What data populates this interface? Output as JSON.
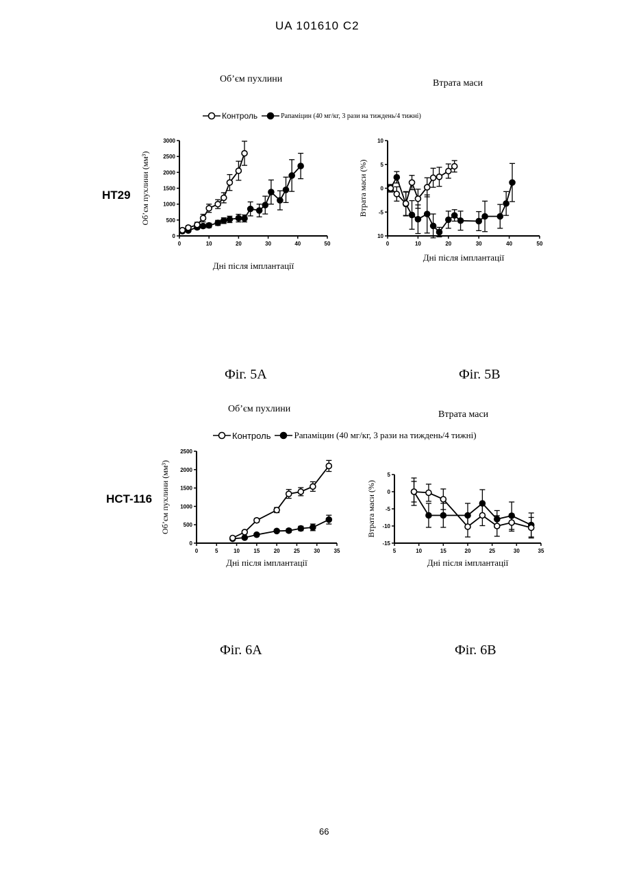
{
  "header": {
    "text": "UA   101610   C2"
  },
  "page_number": "66",
  "figures": {
    "fig5A_label": "Фіг. 5А",
    "fig5B_label": "Фіг. 5В",
    "fig6A_label": "Фіг. 6А",
    "fig6B_label": "Фіг. 6В",
    "cell_line_1": "HT29",
    "cell_line_2": "HCT-116"
  },
  "titles": {
    "volume_5": "Об’єм пухлини",
    "mass_5": "Втрата маси",
    "volume_6": "Об’єм пухлини",
    "mass_6": "Втрата маси"
  },
  "legend_top": {
    "control": "Контроль",
    "rapamycin": "Рапаміцин (40 мг/кг, 3 рази на тиждень/4 тижні)"
  },
  "legend_bottom": {
    "control": "Контроль",
    "rapamycin": "Рапаміцин (40 мг/кг, 3 рази на тиждень/4 тижні)"
  },
  "colors": {
    "ink": "#000000",
    "open_marker_fill": "#ffffff"
  },
  "chart_data": [
    {
      "id": "c5a",
      "type": "line",
      "xlabel": "Дні після імплантації",
      "ylabel": "Об’єм пухлини (мм³)",
      "xlim": [
        0,
        50
      ],
      "ylim": [
        0,
        3000
      ],
      "xticks": [
        0,
        10,
        20,
        30,
        40,
        50
      ],
      "yticks": [
        0,
        500,
        1000,
        1500,
        2000,
        2500,
        3000
      ],
      "series": [
        {
          "name": "Контроль",
          "marker": "open",
          "x": [
            1,
            3,
            6,
            8,
            10,
            13,
            15,
            17,
            20,
            22
          ],
          "y": [
            180,
            260,
            350,
            560,
            870,
            1000,
            1200,
            1680,
            2050,
            2600
          ],
          "err": [
            50,
            60,
            80,
            120,
            130,
            140,
            160,
            250,
            300,
            380
          ]
        },
        {
          "name": "Рапаміцин (40 мг/кг, 3 рази на тиждень/4 тижні)",
          "marker": "filled",
          "x": [
            1,
            3,
            6,
            8,
            10,
            13,
            15,
            17,
            20,
            22,
            24,
            27,
            29,
            31,
            34,
            36,
            38,
            41
          ],
          "y": [
            150,
            170,
            270,
            310,
            330,
            410,
            480,
            520,
            560,
            550,
            850,
            800,
            970,
            1380,
            1120,
            1450,
            1900,
            2200
          ],
          "err": [
            30,
            40,
            60,
            60,
            70,
            80,
            90,
            100,
            120,
            110,
            220,
            200,
            280,
            380,
            300,
            400,
            500,
            400
          ]
        }
      ]
    },
    {
      "id": "c5b",
      "type": "line",
      "xlabel": "Дні після імплантації",
      "ylabel": "Втрата маси (%)",
      "xlim": [
        0,
        50
      ],
      "ylim": [
        -10,
        10
      ],
      "xticks": [
        0,
        10,
        20,
        30,
        40,
        50
      ],
      "yticks": [
        -10,
        -5,
        0,
        5,
        10
      ],
      "ytick_labels": [
        "10",
        "-5",
        "0",
        "5",
        "10"
      ],
      "series": [
        {
          "name": "Контроль",
          "marker": "open",
          "x": [
            1,
            3,
            6,
            8,
            10,
            13,
            15,
            17,
            20,
            22
          ],
          "y": [
            0,
            -1.2,
            -3.2,
            1.2,
            -2.2,
            0.2,
            2.2,
            2.4,
            3.6,
            4.6
          ],
          "err": [
            0.6,
            1.5,
            2.5,
            1.5,
            2,
            2,
            2,
            2,
            1.5,
            1.2
          ]
        },
        {
          "name": "Рапаміцин (40 мг/кг, 3 рази на тиждень/4 тижні)",
          "marker": "filled",
          "x": [
            1,
            3,
            6,
            8,
            10,
            13,
            15,
            17,
            20,
            22,
            24,
            30,
            32,
            37,
            39,
            41
          ],
          "y": [
            0,
            2.3,
            -3.3,
            -5.6,
            -6.5,
            -5.4,
            -7.9,
            -9.2,
            -6.6,
            -5.7,
            -6.8,
            -6.9,
            -5.9,
            -5.9,
            -3.2,
            1.2
          ],
          "err": [
            0.8,
            1.2,
            2.5,
            3,
            3,
            4,
            2.5,
            1,
            1.8,
            1.2,
            2,
            2,
            3.2,
            2.5,
            2.5,
            4
          ]
        }
      ]
    },
    {
      "id": "c6a",
      "type": "line",
      "xlabel": "Дні після імплантації",
      "ylabel": "Об’єм пухлини (мм³)",
      "xlim": [
        0,
        35
      ],
      "ylim": [
        0,
        2500
      ],
      "xticks": [
        0,
        5,
        10,
        15,
        20,
        25,
        30,
        35
      ],
      "yticks": [
        0,
        500,
        1000,
        1500,
        2000,
        2500
      ],
      "series": [
        {
          "name": "Контроль",
          "marker": "open",
          "x": [
            9,
            12,
            15,
            20,
            23,
            26,
            29,
            33
          ],
          "y": [
            140,
            300,
            620,
            900,
            1340,
            1400,
            1540,
            2100
          ],
          "err": [
            20,
            40,
            50,
            70,
            120,
            110,
            130,
            150
          ]
        },
        {
          "name": "Рапаміцин (40 мг/кг, 3 рази на тиждень/4 тижні)",
          "marker": "filled",
          "x": [
            9,
            12,
            15,
            20,
            23,
            26,
            29,
            33
          ],
          "y": [
            120,
            150,
            230,
            330,
            340,
            400,
            430,
            640
          ],
          "err": [
            15,
            20,
            30,
            40,
            50,
            60,
            90,
            120
          ]
        }
      ]
    },
    {
      "id": "c6b",
      "type": "line",
      "xlabel": "Дні після імплантації",
      "ylabel": "Втрата маси (%)",
      "xlim": [
        5,
        35
      ],
      "ylim": [
        -15,
        5
      ],
      "xticks": [
        5,
        10,
        15,
        20,
        25,
        30,
        35
      ],
      "yticks": [
        -15,
        -10,
        -5,
        0,
        5
      ],
      "series": [
        {
          "name": "Контроль",
          "marker": "open",
          "x": [
            9,
            12,
            15,
            20,
            23,
            26,
            29,
            33
          ],
          "y": [
            0,
            -0.3,
            -2.2,
            -10.2,
            -6.9,
            -10,
            -9,
            -10.5
          ],
          "err": [
            4,
            2.5,
            3,
            3,
            3,
            3,
            2.5,
            3
          ]
        },
        {
          "name": "Рапаміцин (40 мг/кг, 3 рази на тиждень/4 тижні)",
          "marker": "filled",
          "x": [
            9,
            12,
            15,
            20,
            23,
            26,
            29,
            33
          ],
          "y": [
            0,
            -6.9,
            -6.9,
            -6.9,
            -3.4,
            -8,
            -7,
            -9.7
          ],
          "err": [
            3,
            3.5,
            3.5,
            3.5,
            4,
            2.5,
            4,
            3.5
          ]
        }
      ]
    }
  ]
}
